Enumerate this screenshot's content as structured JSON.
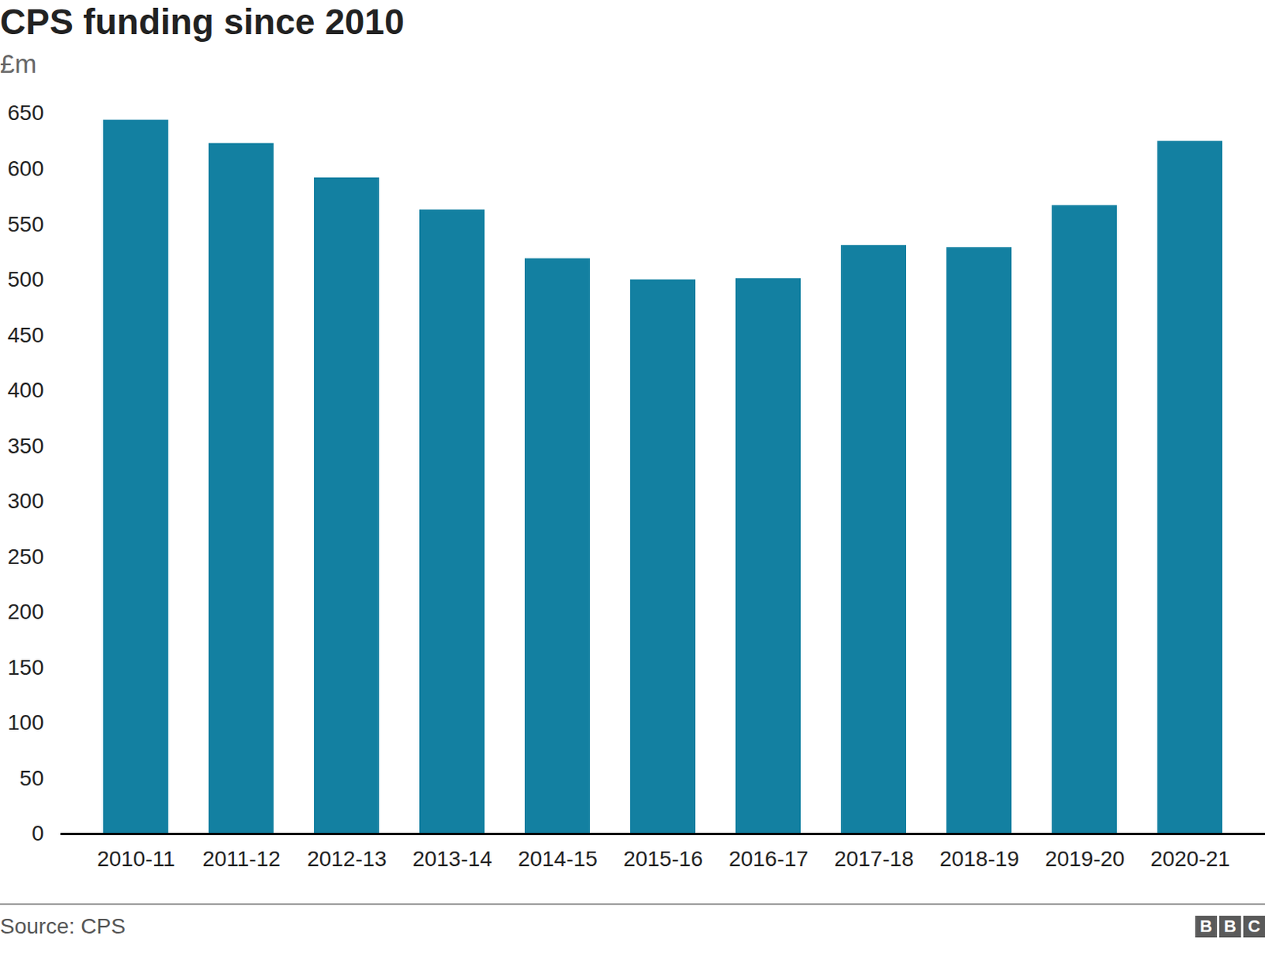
{
  "chart_data": {
    "type": "bar",
    "title": "CPS funding since 2010",
    "subtitle": "£m",
    "categories": [
      "2010-11",
      "2011-12",
      "2012-13",
      "2013-14",
      "2014-15",
      "2015-16",
      "2016-17",
      "2017-18",
      "2018-19",
      "2019-20",
      "2020-21"
    ],
    "values": [
      644,
      623,
      592,
      563,
      519,
      500,
      501,
      531,
      529,
      567,
      625
    ],
    "color": "#1380a1",
    "ylim": [
      0,
      650
    ],
    "yticks": [
      0,
      50,
      100,
      150,
      200,
      250,
      300,
      350,
      400,
      450,
      500,
      550,
      600,
      650
    ],
    "grid": false,
    "source": "Source: CPS",
    "logo": "BBC"
  }
}
